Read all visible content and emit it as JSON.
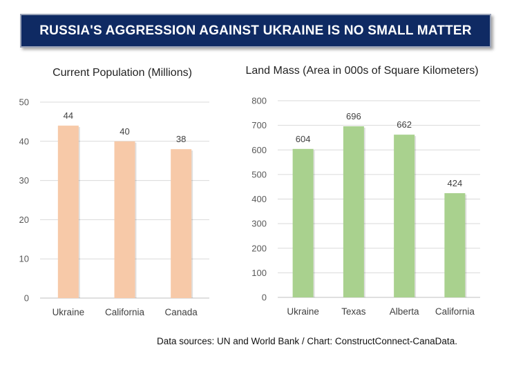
{
  "banner": {
    "title": "RUSSIA'S AGGRESSION AGAINST UKRAINE IS NO SMALL MATTER"
  },
  "colors": {
    "banner_bg": "#0f2a63",
    "population_bar": "#f7c9a8",
    "land_bar": "#a9d18e"
  },
  "chart_data": [
    {
      "type": "bar",
      "title": "Current Population (Millions)",
      "categories": [
        "Ukraine",
        "California",
        "Canada"
      ],
      "values": [
        44,
        40,
        38
      ],
      "ylim": [
        0,
        50
      ],
      "yticks": [
        0,
        10,
        20,
        30,
        40,
        50
      ],
      "grid": true,
      "data_labels": true
    },
    {
      "type": "bar",
      "title": "Land Mass (Area in 000s of Square Kilometers)",
      "categories": [
        "Ukraine",
        "Texas",
        "Alberta",
        "California"
      ],
      "values": [
        604,
        696,
        662,
        424
      ],
      "ylim": [
        0,
        800
      ],
      "yticks": [
        0,
        100,
        200,
        300,
        400,
        500,
        600,
        700,
        800
      ],
      "grid": true,
      "data_labels": true
    }
  ],
  "footer": {
    "source": "Data sources: UN and World Bank / Chart: ConstructConnect-CanaData."
  }
}
